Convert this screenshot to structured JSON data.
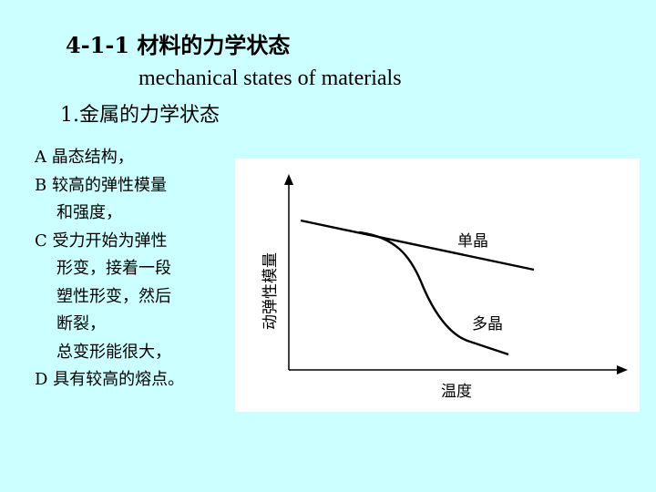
{
  "title": {
    "heading": "4-1-1 材料的力学状态",
    "subtitle_en": "mechanical states of materials",
    "section": "1.金属的力学状态"
  },
  "properties": [
    "A 晶态结构，",
    "B 较高的弹性模量",
    "和强度，",
    "C 受力开始为弹性",
    "形变，接着一段",
    "塑性形变，然后",
    "断裂，",
    "总变形能很大，",
    "D 具有较高的熔点。"
  ],
  "diagram": {
    "y_axis_label": "动弹性模量",
    "x_axis_label": "温度",
    "curve_single_crystal": "单晶",
    "curve_polycrystal": "多晶",
    "colors": {
      "panel": "#ffffff",
      "background": "#ccffff",
      "ink": "#000000"
    }
  }
}
